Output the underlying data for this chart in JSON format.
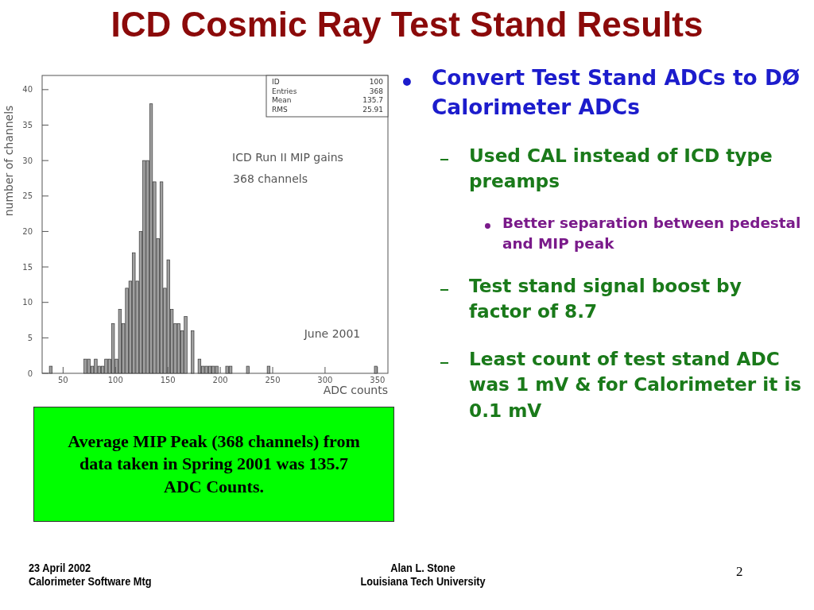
{
  "chart_data": {
    "type": "histogram",
    "title": "ICD Cosmic Ray Test Stand Results",
    "xlabel": "ADC counts",
    "ylabel": "number of channels",
    "bins": [
      30,
      33.3,
      36.6,
      39.9,
      43.2,
      46.5,
      49.8,
      53.1,
      56.4,
      59.7,
      63,
      66.3,
      69.6,
      72.9,
      76.2,
      79.5,
      82.8,
      86.1,
      89.4,
      92.7,
      96,
      99.3,
      102.6,
      105.9,
      109.2,
      112.5,
      115.8,
      119.1,
      122.4,
      125.7,
      129,
      132.3,
      135.6,
      138.9,
      142.2,
      145.5,
      148.8,
      152.1,
      155.4,
      158.7,
      162,
      165.3,
      168.6,
      171.9,
      175.2,
      178.5,
      181.8,
      185.1,
      188.4,
      191.7,
      195,
      198.3,
      201.6,
      204.9,
      208.2,
      211.5,
      214.8,
      218.1,
      221.4,
      224.7,
      228,
      231.3,
      234.6,
      237.9,
      241.2,
      244.5,
      247.8,
      251.1,
      254.4,
      257.7,
      261,
      264.3,
      267.6,
      270.9,
      274.2,
      277.5,
      280.8,
      284.1,
      287.4,
      290.7,
      294,
      297.3,
      300.6,
      303.9,
      307.2,
      310.5,
      313.8,
      317.1,
      320.4,
      323.7,
      327,
      330.3,
      333.6,
      336.9,
      340.2,
      343.5,
      346.8,
      350.1,
      353.4,
      356.7,
      360
    ],
    "values": [
      0,
      0,
      1,
      0,
      0,
      0,
      0,
      0,
      0,
      0,
      0,
      0,
      2,
      2,
      1,
      2,
      1,
      1,
      2,
      2,
      7,
      2,
      9,
      7,
      12,
      13,
      17,
      13,
      20,
      30,
      30,
      38,
      27,
      19,
      27,
      12,
      16,
      9,
      7,
      7,
      6,
      8,
      0,
      6,
      0,
      2,
      1,
      1,
      1,
      1,
      1,
      0,
      0,
      1,
      1,
      0,
      0,
      0,
      0,
      1,
      0,
      0,
      0,
      0,
      0,
      1,
      0,
      0,
      0,
      0,
      0,
      0,
      0,
      0,
      0,
      0,
      0,
      0,
      0,
      0,
      0,
      0,
      0,
      0,
      0,
      0,
      0,
      0,
      0,
      0,
      0,
      0,
      0,
      0,
      0,
      0,
      1,
      0,
      0,
      0
    ],
    "color": "#a0a0a0",
    "xlim": [
      30,
      360
    ],
    "xticks": [
      50,
      100,
      150,
      200,
      250,
      300,
      350
    ],
    "ylim": [
      0,
      42
    ],
    "yticks": [
      0,
      5,
      10,
      15,
      20,
      25,
      30,
      35,
      40
    ],
    "annotations": [
      "ICD Run II MIP gains",
      "368 channels",
      "June 2001",
      "ID",
      "100",
      "Entries",
      "368",
      "Mean",
      "135.7",
      "RMS",
      "25.91",
      "Convert Test Stand ADCs to DØ Calorimeter ADCs",
      "Used CAL  instead of ICD type preamps",
      "Better separation between pedestal and MIP peak",
      "Test stand signal boost by factor of 8.7",
      "Least count of test stand ADC was 1 mV & for Calorimeter it is 0.1 mV",
      "Average MIP Peak (368 channels) from  data taken in Spring 2001 was 135.7 ADC Counts.",
      "23 April 2002",
      "Calorimeter Software Mtg",
      "Alan L. Stone",
      "Louisiana Tech University",
      "2"
    ]
  }
}
